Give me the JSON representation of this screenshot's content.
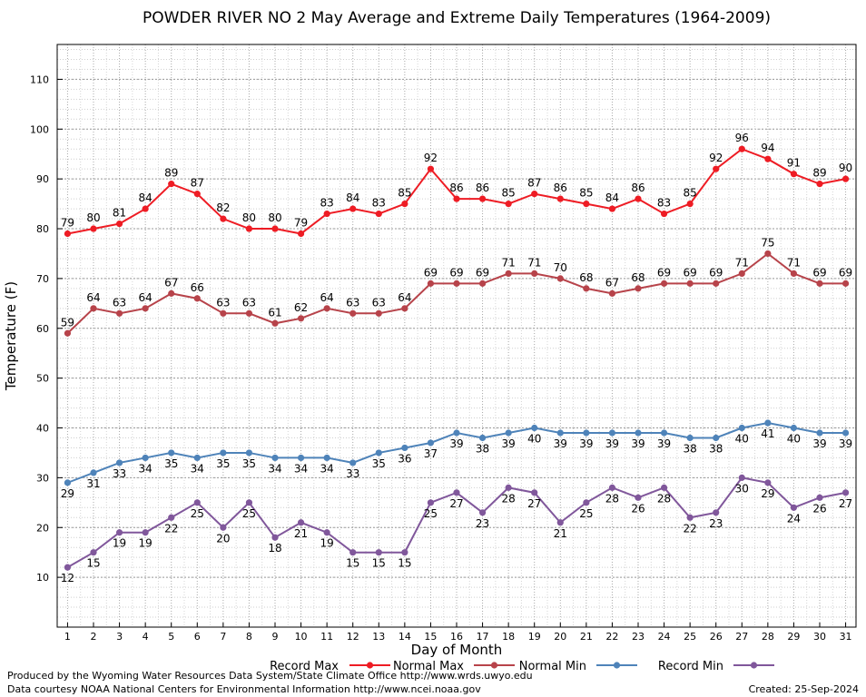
{
  "chart_data": {
    "type": "line",
    "title": "POWDER RIVER NO 2 May Average and Extreme Daily Temperatures (1964-2009)",
    "xlabel": "Day of Month",
    "ylabel": "Temperature (F)",
    "x": [
      1,
      2,
      3,
      4,
      5,
      6,
      7,
      8,
      9,
      10,
      11,
      12,
      13,
      14,
      15,
      16,
      17,
      18,
      19,
      20,
      21,
      22,
      23,
      24,
      25,
      26,
      27,
      28,
      29,
      30,
      31
    ],
    "xlim": [
      0.6,
      31.4
    ],
    "ylim": [
      0,
      117
    ],
    "yticks": [
      10,
      20,
      30,
      40,
      50,
      60,
      70,
      80,
      90,
      100,
      110
    ],
    "grid": true,
    "legend_position": "bottom",
    "series": [
      {
        "name": "Record Max",
        "color": "#ee1c24",
        "label_position": "above",
        "values": [
          79,
          80,
          81,
          84,
          89,
          87,
          82,
          80,
          80,
          79,
          83,
          84,
          83,
          85,
          92,
          86,
          86,
          85,
          87,
          86,
          85,
          84,
          86,
          83,
          85,
          92,
          96,
          94,
          91,
          89,
          90
        ]
      },
      {
        "name": "Normal Max",
        "color": "#b7434a",
        "label_position": "above",
        "values": [
          59,
          64,
          63,
          64,
          67,
          66,
          63,
          63,
          61,
          62,
          64,
          63,
          63,
          64,
          69,
          69,
          69,
          71,
          71,
          70,
          68,
          67,
          68,
          69,
          69,
          69,
          71,
          75,
          71,
          69,
          69
        ]
      },
      {
        "name": "Normal Min",
        "color": "#4e83b9",
        "label_position": "below",
        "values": [
          29,
          31,
          33,
          34,
          35,
          34,
          35,
          35,
          34,
          34,
          34,
          33,
          35,
          36,
          37,
          39,
          38,
          39,
          40,
          39,
          39,
          39,
          39,
          39,
          38,
          38,
          40,
          41,
          40,
          39,
          39
        ]
      },
      {
        "name": "Record Min",
        "color": "#80579b",
        "label_position": "below",
        "values": [
          12,
          15,
          19,
          19,
          22,
          25,
          20,
          25,
          18,
          21,
          19,
          15,
          15,
          15,
          25,
          27,
          23,
          28,
          27,
          21,
          25,
          28,
          26,
          28,
          22,
          23,
          30,
          29,
          24,
          26,
          27
        ]
      }
    ]
  },
  "footer": {
    "produced_by": "Produced by the Wyoming Water Resources Data System/State Climate Office http://www.wrds.uwyo.edu",
    "courtesy": "Data courtesy NOAA National Centers for Environmental Information http://www.ncei.noaa.gov",
    "created": "Created:  25-Sep-2024"
  }
}
